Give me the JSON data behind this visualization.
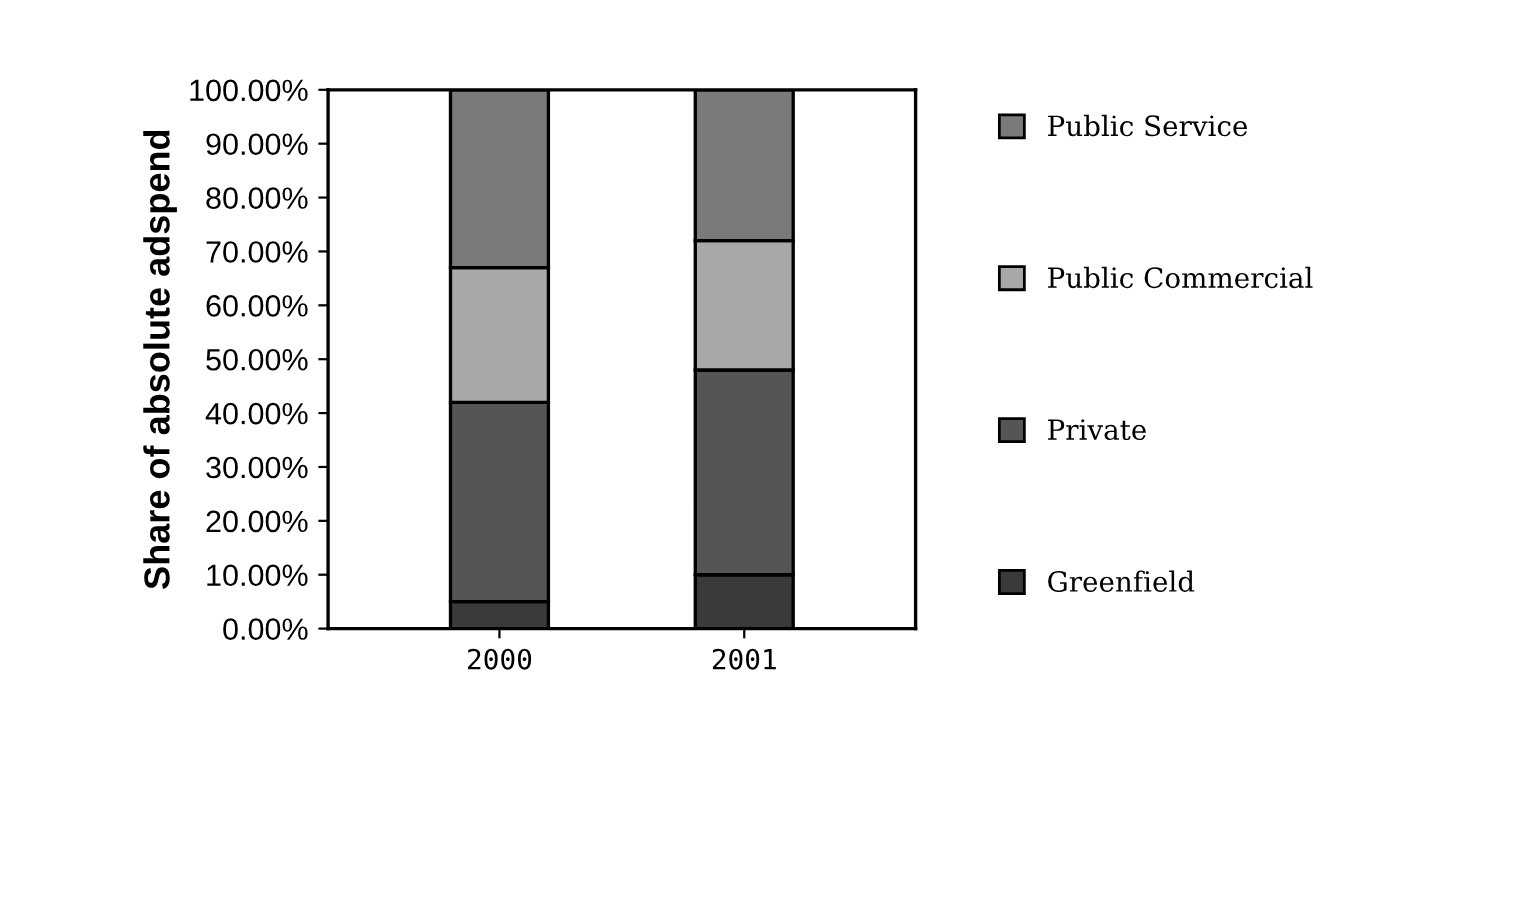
{
  "chart_data": {
    "type": "bar",
    "stacked": true,
    "ylabel": "Share of absolute adspend",
    "categories": [
      "2000",
      "2001"
    ],
    "series": [
      {
        "name": "Greenfield",
        "color": "#3a3a3a",
        "values": [
          5,
          10
        ]
      },
      {
        "name": "Private",
        "color": "#555555",
        "values": [
          37,
          38
        ]
      },
      {
        "name": "Public Commercial",
        "color": "#a8a8a8",
        "values": [
          25,
          24
        ]
      },
      {
        "name": "Public Service",
        "color": "#7a7a7a",
        "values": [
          33,
          28
        ]
      }
    ],
    "ylim": [
      0,
      100
    ],
    "yticks": [
      {
        "value": 0,
        "label": "0.00%"
      },
      {
        "value": 10,
        "label": "10.00%"
      },
      {
        "value": 20,
        "label": "20.00%"
      },
      {
        "value": 30,
        "label": "30.00%"
      },
      {
        "value": 40,
        "label": "40.00%"
      },
      {
        "value": 50,
        "label": "50.00%"
      },
      {
        "value": 60,
        "label": "60.00%"
      },
      {
        "value": 70,
        "label": "70.00%"
      },
      {
        "value": 80,
        "label": "80.00%"
      },
      {
        "value": 90,
        "label": "90.00%"
      },
      {
        "value": 100,
        "label": "100.00%"
      }
    ],
    "grid": false,
    "legend": "right"
  }
}
